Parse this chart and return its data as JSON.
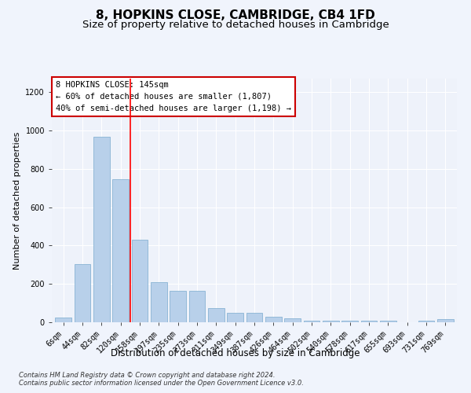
{
  "title": "8, HOPKINS CLOSE, CAMBRIDGE, CB4 1FD",
  "subtitle": "Size of property relative to detached houses in Cambridge",
  "xlabel": "Distribution of detached houses by size in Cambridge",
  "ylabel": "Number of detached properties",
  "bar_color": "#b8d0ea",
  "bar_edge_color": "#7aaace",
  "categories": [
    "6sqm",
    "44sqm",
    "82sqm",
    "120sqm",
    "158sqm",
    "197sqm",
    "235sqm",
    "273sqm",
    "311sqm",
    "349sqm",
    "387sqm",
    "426sqm",
    "464sqm",
    "502sqm",
    "540sqm",
    "578sqm",
    "617sqm",
    "655sqm",
    "693sqm",
    "731sqm",
    "769sqm"
  ],
  "values": [
    25,
    305,
    965,
    745,
    430,
    210,
    165,
    165,
    75,
    48,
    48,
    30,
    20,
    10,
    10,
    10,
    10,
    10,
    0,
    10,
    15
  ],
  "ylim": [
    0,
    1270
  ],
  "yticks": [
    0,
    200,
    400,
    600,
    800,
    1000,
    1200
  ],
  "vline_x": 3.5,
  "annotation_text": "8 HOPKINS CLOSE: 145sqm\n← 60% of detached houses are smaller (1,807)\n40% of semi-detached houses are larger (1,198) →",
  "annotation_box_color": "#ffffff",
  "annotation_box_edge": "#cc0000",
  "footnote1": "Contains HM Land Registry data © Crown copyright and database right 2024.",
  "footnote2": "Contains public sector information licensed under the Open Government Licence v3.0.",
  "bg_color": "#eef2fa",
  "grid_color": "#ffffff",
  "title_fontsize": 11,
  "subtitle_fontsize": 9.5,
  "xlabel_fontsize": 8.5,
  "ylabel_fontsize": 8,
  "tick_fontsize": 7,
  "annotation_fontsize": 7.5,
  "footnote_fontsize": 6
}
